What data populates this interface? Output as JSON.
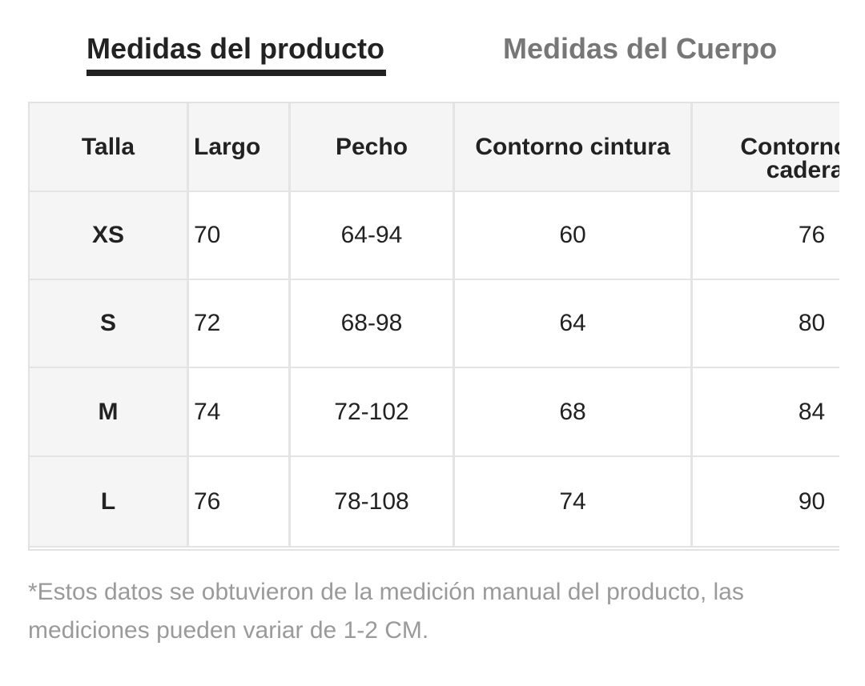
{
  "tabs": [
    "Medidas del producto",
    "Medidas del Cuerpo"
  ],
  "table": {
    "header": [
      "Talla",
      "Largo",
      "Pecho",
      "Contorno cintura",
      "Contorno de caderas"
    ],
    "rows": [
      [
        "XS",
        "70",
        "64-94",
        "60",
        "76"
      ],
      [
        "S",
        "72",
        "68-98",
        "64",
        "80"
      ],
      [
        "M",
        "74",
        "72-102",
        "68",
        "84"
      ],
      [
        "L",
        "76",
        "78-108",
        "74",
        "90"
      ]
    ]
  },
  "note": "*Estos datos se obtuvieron de la medición manual del producto, las mediciones pueden variar de 1-2 CM."
}
